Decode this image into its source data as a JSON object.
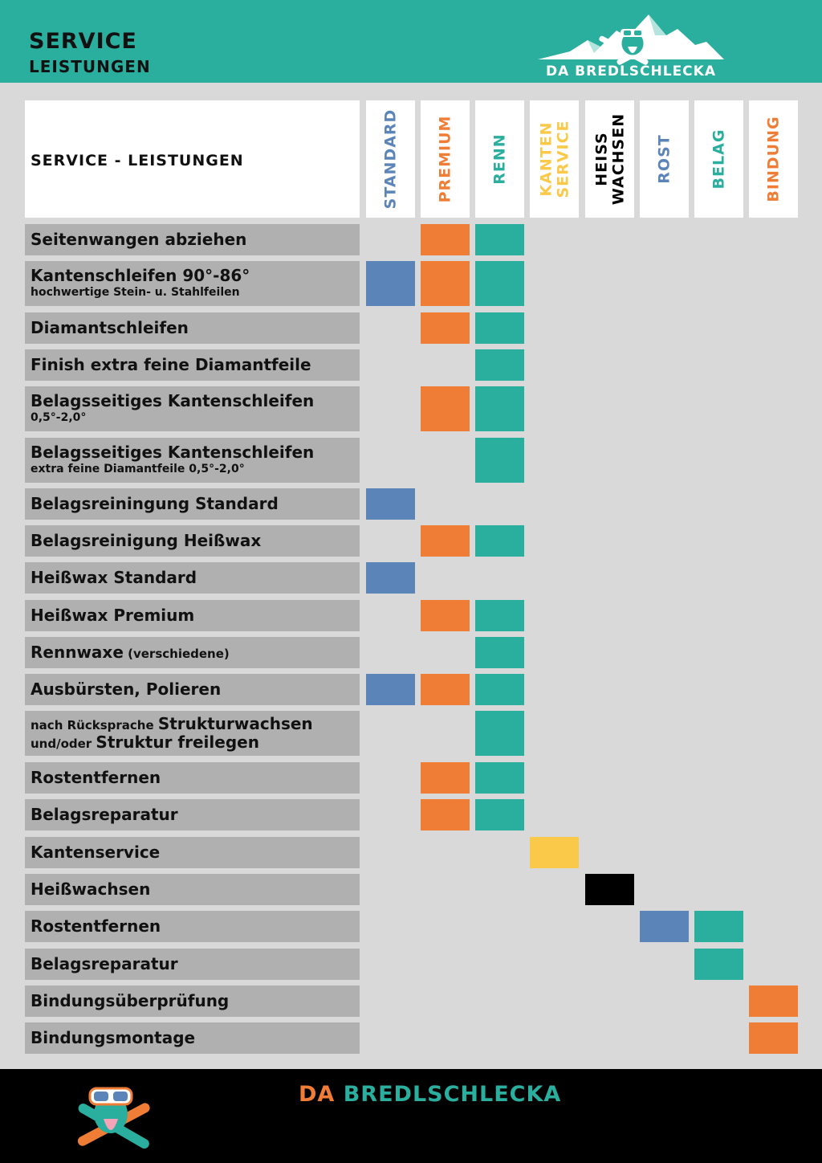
{
  "header": {
    "title_line1": "SERVICE",
    "title_line2": "LEISTUNGEN",
    "brand_name": "DA BREDLSCHLECKA"
  },
  "table": {
    "title": "SERVICE - LEISTUNGEN",
    "columns": [
      {
        "key": "standard",
        "lines": [
          "STANDARD"
        ],
        "color": "#5b84b8"
      },
      {
        "key": "premium",
        "lines": [
          "PREMIUM"
        ],
        "color": "#ef7d36"
      },
      {
        "key": "renn",
        "lines": [
          "RENN"
        ],
        "color": "#2aae9e"
      },
      {
        "key": "kanten_service",
        "lines": [
          "KANTEN",
          "SERVICE"
        ],
        "color": "#fbc94a"
      },
      {
        "key": "heiss_wachsen",
        "lines": [
          "HEIß",
          "WACHSEN"
        ],
        "color": "#000000"
      },
      {
        "key": "rost",
        "lines": [
          "ROST"
        ],
        "color": "#5b84b8"
      },
      {
        "key": "belag",
        "lines": [
          "BELAG"
        ],
        "color": "#2aae9e"
      },
      {
        "key": "bindung",
        "lines": [
          "BINDUNG"
        ],
        "color": "#ef7d36"
      }
    ],
    "rows": [
      {
        "label": "Seitenwangen abziehen",
        "cols": [
          "premium",
          "renn"
        ]
      },
      {
        "label": "Kantenschleifen 90°-86°",
        "sub": "hochwertige Stein- u. Stahlfeilen",
        "cols": [
          "standard",
          "premium",
          "renn"
        ]
      },
      {
        "label": "Diamantschleifen",
        "cols": [
          "premium",
          "renn"
        ]
      },
      {
        "label": "Finish extra feine Diamantfeile",
        "cols": [
          "renn"
        ]
      },
      {
        "label": "Belagsseitiges Kantenschleifen",
        "sub": "0,5°-2,0°",
        "cols": [
          "premium",
          "renn"
        ]
      },
      {
        "label": "Belagsseitiges Kantenschleifen",
        "sub": "extra feine Diamantfeile 0,5°-2,0°",
        "cols": [
          "renn"
        ]
      },
      {
        "label": "Belagsreiningung Standard",
        "cols": [
          "standard"
        ]
      },
      {
        "label": "Belagsreinigung Heißwax",
        "cols": [
          "premium",
          "renn"
        ]
      },
      {
        "label": "Heißwax Standard",
        "cols": [
          "standard"
        ]
      },
      {
        "label": "Heißwax Premium",
        "cols": [
          "premium",
          "renn"
        ]
      },
      {
        "label": "Rennwaxe",
        "label_small": "(verschiedene)",
        "cols": [
          "renn"
        ]
      },
      {
        "label": "Ausbürsten, Polieren",
        "cols": [
          "standard",
          "premium",
          "renn"
        ]
      },
      {
        "line1_small": "nach Rücksprache",
        "line1": "Strukturwachsen",
        "line2_small": "und/oder",
        "line2": "Struktur freilegen",
        "cols": [
          "renn"
        ]
      },
      {
        "label": "Rostentfernen",
        "cols": [
          "premium",
          "renn"
        ]
      },
      {
        "label": "Belagsreparatur",
        "cols": [
          "premium",
          "renn"
        ]
      },
      {
        "label": "Kantenservice",
        "cols": [
          "kanten_service"
        ]
      },
      {
        "label": "Heißwachsen",
        "cols": [
          "heiss_wachsen"
        ]
      },
      {
        "label": "Rostentfernen",
        "cols": [
          "rost",
          "belag"
        ]
      },
      {
        "label": "Belagsreparatur",
        "cols": [
          "belag"
        ]
      },
      {
        "label": "Bindungsüberprüfung",
        "cols": [
          "bindung"
        ]
      },
      {
        "label": "Bindungsmontage",
        "cols": [
          "bindung"
        ]
      }
    ]
  },
  "footer": {
    "brand_part1": "DA",
    "brand_part2": "BREDLSCHLECKA"
  },
  "colors": {
    "teal": "#2aae9e",
    "orange": "#ef7d36",
    "blue": "#5b84b8",
    "yellow": "#fbc94a",
    "black": "#000000",
    "row_gray": "#b0b0b0",
    "background": "#d9d9d9"
  },
  "icons": {
    "header_logo": "mountain-mascot-icon",
    "footer_logo": "mascot-icon"
  }
}
